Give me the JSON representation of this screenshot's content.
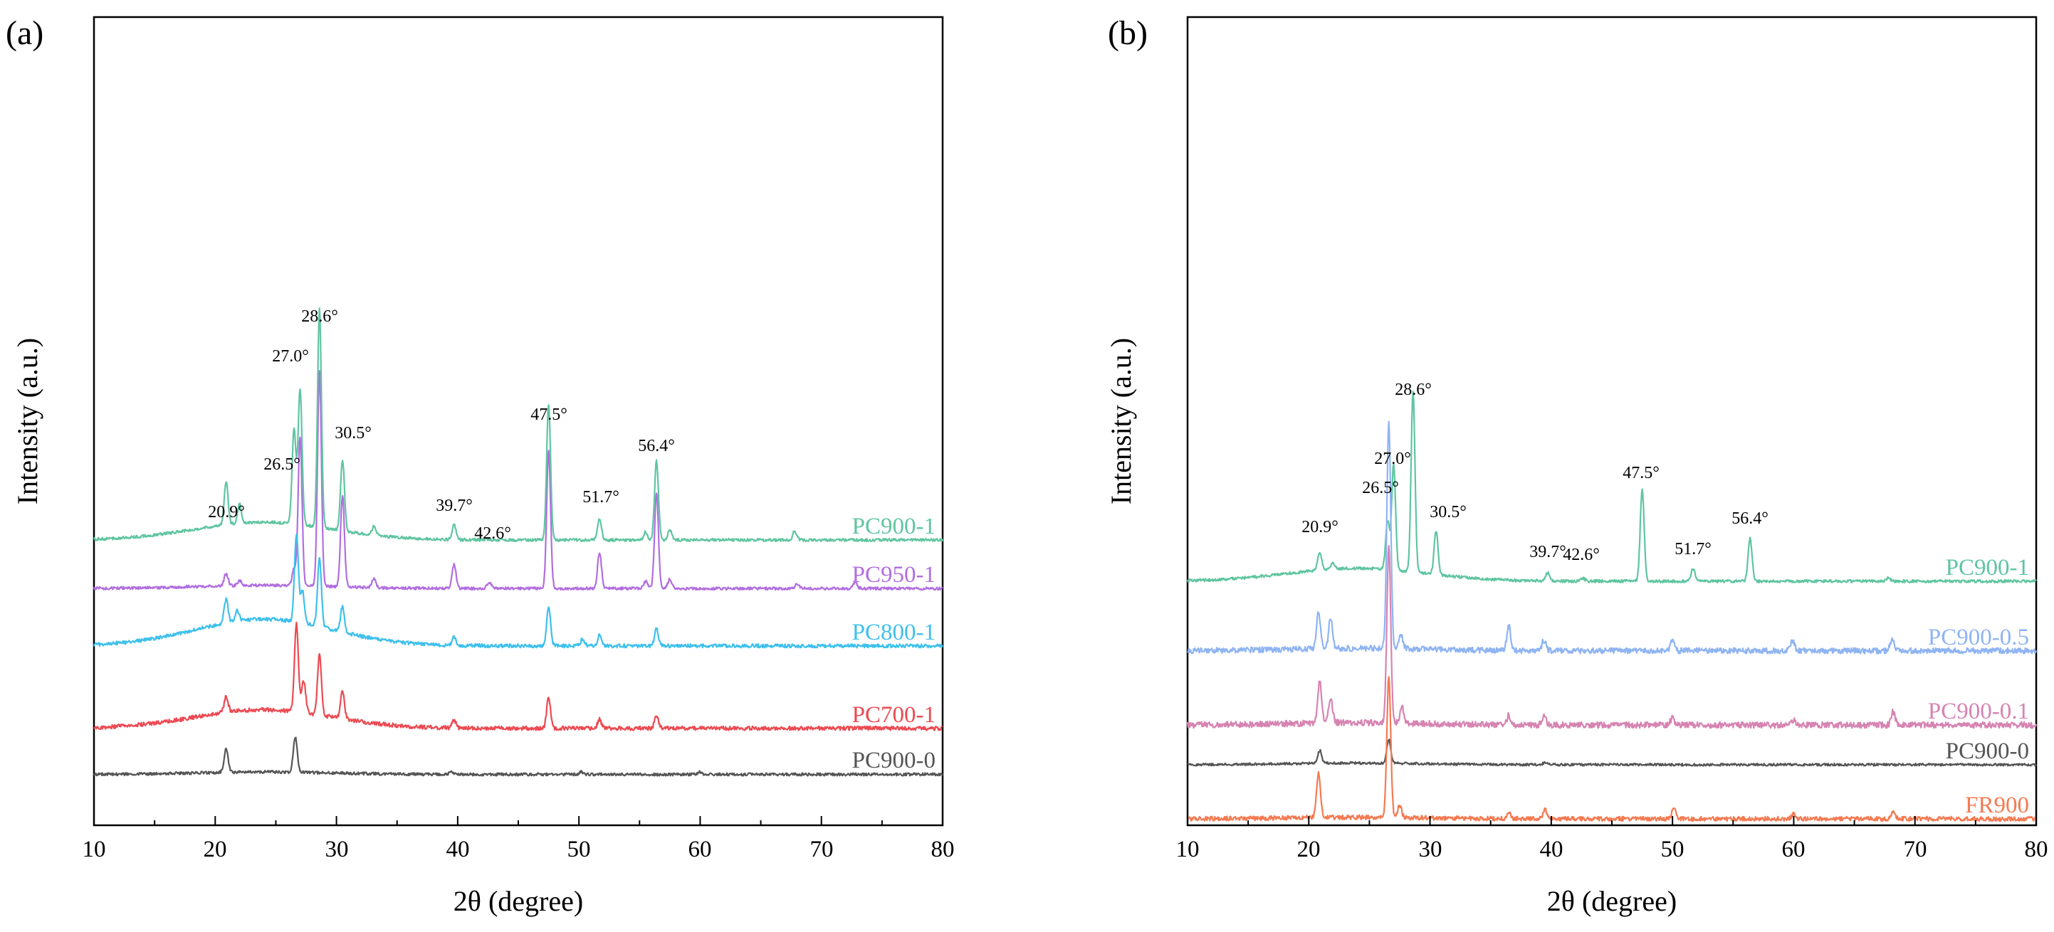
{
  "figure": {
    "panels": [
      {
        "id": "a",
        "label": "(a)"
      },
      {
        "id": "b",
        "label": "(b)"
      }
    ]
  },
  "chart_data": [
    {
      "panel": "a",
      "type": "line",
      "title": "",
      "xlabel": "2θ (degree)",
      "ylabel": "Intensity (a.u.)",
      "xlim": [
        10,
        80
      ],
      "xticks": [
        10,
        20,
        30,
        40,
        50,
        60,
        70,
        80
      ],
      "y_ticks_shown": false,
      "grid": false,
      "legend": "series names printed at right end of each trace",
      "offset_units": "stacked traces: offset and height are in relative intensity units (0 = bottom of plot area, 100 = top)",
      "series": [
        {
          "name": "PC950-1",
          "color": "#b26ee0",
          "offset": 29.3,
          "noise": 0.35,
          "baseline_hump": 0.4,
          "peaks": [
            [
              20.9,
              1.5
            ],
            [
              22.0,
              0.6
            ],
            [
              26.5,
              2.0
            ],
            [
              27.0,
              18.5
            ],
            [
              28.6,
              26.5
            ],
            [
              30.5,
              11.3
            ],
            [
              33.1,
              1.1
            ],
            [
              39.7,
              3.0
            ],
            [
              42.6,
              0.8
            ],
            [
              47.5,
              17.0
            ],
            [
              51.7,
              4.5
            ],
            [
              55.5,
              0.9
            ],
            [
              56.4,
              11.8
            ],
            [
              57.5,
              1.2
            ],
            [
              68.0,
              0.6
            ],
            [
              72.8,
              0.8
            ]
          ]
        },
        {
          "name": "PC900-1",
          "color": "#5fc5a0",
          "offset": 35.3,
          "noise": 0.35,
          "baseline_hump": 2.2,
          "peaks": [
            [
              20.9,
              5.3
            ],
            [
              22.0,
              2.4
            ],
            [
              26.5,
              11.7
            ],
            [
              27.0,
              16.8
            ],
            [
              28.6,
              27.0
            ],
            [
              30.5,
              8.8
            ],
            [
              33.1,
              1.1
            ],
            [
              39.7,
              1.8
            ],
            [
              47.5,
              16.8
            ],
            [
              51.7,
              2.7
            ],
            [
              55.5,
              1.0
            ],
            [
              56.4,
              9.8
            ],
            [
              57.5,
              1.3
            ],
            [
              67.8,
              1.1
            ]
          ]
        },
        {
          "name": "PC800-1",
          "color": "#3ec0ec",
          "offset": 22.2,
          "noise": 0.45,
          "baseline_hump": 3.3,
          "peaks": [
            [
              20.9,
              3.0
            ],
            [
              21.8,
              1.3
            ],
            [
              26.7,
              11.0
            ],
            [
              27.2,
              4.0
            ],
            [
              28.6,
              8.4
            ],
            [
              30.5,
              3.2
            ],
            [
              39.7,
              1.0
            ],
            [
              47.5,
              5.0
            ],
            [
              50.3,
              0.8
            ],
            [
              51.7,
              1.3
            ],
            [
              56.4,
              2.1
            ]
          ]
        },
        {
          "name": "PC700-1",
          "color": "#ec4a52",
          "offset": 12.0,
          "noise": 0.5,
          "baseline_hump": 2.3,
          "peaks": [
            [
              20.9,
              2.0
            ],
            [
              26.7,
              10.8
            ],
            [
              27.3,
              4.0
            ],
            [
              28.6,
              7.5
            ],
            [
              30.5,
              3.3
            ],
            [
              39.7,
              1.0
            ],
            [
              47.5,
              3.8
            ],
            [
              51.7,
              1.1
            ],
            [
              56.4,
              1.5
            ]
          ]
        },
        {
          "name": "PC900-0",
          "color": "#555555",
          "offset": 6.3,
          "noise": 0.35,
          "baseline_hump": 0.3,
          "peaks": [
            [
              20.9,
              3.0
            ],
            [
              26.6,
              4.4
            ],
            [
              39.5,
              0.3
            ],
            [
              50.2,
              0.3
            ],
            [
              60.0,
              0.3
            ]
          ]
        }
      ],
      "annotations": [
        {
          "text": "20.9°",
          "x": 20.9,
          "y": 38.1
        },
        {
          "text": "26.5°",
          "x": 25.5,
          "y": 44.0
        },
        {
          "text": "27.0°",
          "x": 26.2,
          "y": 57.4
        },
        {
          "text": "28.6°",
          "x": 28.6,
          "y": 62.3
        },
        {
          "text": "30.5°",
          "x": 31.4,
          "y": 47.9
        },
        {
          "text": "39.7°",
          "x": 39.7,
          "y": 38.9
        },
        {
          "text": "42.6°",
          "x": 42.9,
          "y": 35.5
        },
        {
          "text": "47.5°",
          "x": 47.5,
          "y": 50.2
        },
        {
          "text": "51.7°",
          "x": 51.8,
          "y": 40.0
        },
        {
          "text": "56.4°",
          "x": 56.4,
          "y": 46.3
        }
      ]
    },
    {
      "panel": "b",
      "type": "line",
      "title": "",
      "xlabel": "2θ (degree)",
      "ylabel": "Intensity (a.u.)",
      "xlim": [
        10,
        80
      ],
      "xticks": [
        10,
        20,
        30,
        40,
        50,
        60,
        70,
        80
      ],
      "y_ticks_shown": false,
      "grid": false,
      "legend": "series names printed at right end of each trace",
      "offset_units": "stacked traces: offset and height are in relative intensity units (0 = bottom of plot area, 100 = top)",
      "series": [
        {
          "name": "PC900-1",
          "color": "#5fc5a0",
          "offset": 30.2,
          "noise": 0.35,
          "baseline_hump": 1.6,
          "peaks": [
            [
              20.9,
              2.3
            ],
            [
              22.0,
              0.7
            ],
            [
              26.5,
              6.0
            ],
            [
              27.0,
              13.0
            ],
            [
              28.6,
              22.3
            ],
            [
              30.5,
              5.4
            ],
            [
              39.7,
              1.0
            ],
            [
              42.6,
              0.4
            ],
            [
              47.5,
              11.4
            ],
            [
              51.7,
              1.6
            ],
            [
              56.4,
              5.3
            ],
            [
              67.8,
              0.4
            ]
          ]
        },
        {
          "name": "PC900-0.5",
          "color": "#8fb4f2",
          "offset": 21.6,
          "noise": 0.7,
          "baseline_hump": 0.3,
          "peaks": [
            [
              20.8,
              4.6
            ],
            [
              21.8,
              3.8
            ],
            [
              26.6,
              28.0
            ],
            [
              27.6,
              1.8
            ],
            [
              36.5,
              3.0
            ],
            [
              39.4,
              1.3
            ],
            [
              50.0,
              1.4
            ],
            [
              59.9,
              1.3
            ],
            [
              68.1,
              1.4
            ]
          ]
        },
        {
          "name": "PC900-0.1",
          "color": "#d684b2",
          "offset": 12.4,
          "noise": 0.75,
          "baseline_hump": 0.3,
          "peaks": [
            [
              20.9,
              5.1
            ],
            [
              21.8,
              3.0
            ],
            [
              26.6,
              21.6
            ],
            [
              27.7,
              1.9
            ],
            [
              36.5,
              1.2
            ],
            [
              39.4,
              1.1
            ],
            [
              50.0,
              1.0
            ],
            [
              60.0,
              0.7
            ],
            [
              68.2,
              1.7
            ]
          ]
        },
        {
          "name": "PC900-0",
          "color": "#555555",
          "offset": 7.5,
          "noise": 0.3,
          "baseline_hump": 0.2,
          "peaks": [
            [
              20.9,
              1.6
            ],
            [
              26.6,
              3.0
            ],
            [
              39.5,
              0.3
            ]
          ]
        },
        {
          "name": "FR900",
          "color": "#f47a52",
          "offset": 0.8,
          "noise": 0.55,
          "baseline_hump": 0.2,
          "peaks": [
            [
              20.8,
              5.5
            ],
            [
              26.6,
              17.5
            ],
            [
              27.5,
              1.5
            ],
            [
              36.5,
              0.8
            ],
            [
              39.5,
              1.1
            ],
            [
              50.1,
              1.3
            ],
            [
              60.0,
              0.7
            ],
            [
              68.2,
              0.8
            ]
          ]
        }
      ],
      "annotations": [
        {
          "text": "20.9°",
          "x": 20.9,
          "y": 36.3
        },
        {
          "text": "26.5°",
          "x": 25.9,
          "y": 41.1
        },
        {
          "text": "27.0°",
          "x": 26.9,
          "y": 44.7
        },
        {
          "text": "28.6°",
          "x": 28.6,
          "y": 53.3
        },
        {
          "text": "30.5°",
          "x": 31.5,
          "y": 38.1
        },
        {
          "text": "39.7°",
          "x": 39.7,
          "y": 33.2
        },
        {
          "text": "42.6°",
          "x": 42.5,
          "y": 32.8
        },
        {
          "text": "47.5°",
          "x": 47.4,
          "y": 43.0
        },
        {
          "text": "51.7°",
          "x": 51.7,
          "y": 33.5
        },
        {
          "text": "56.4°",
          "x": 56.4,
          "y": 37.3
        }
      ]
    }
  ]
}
